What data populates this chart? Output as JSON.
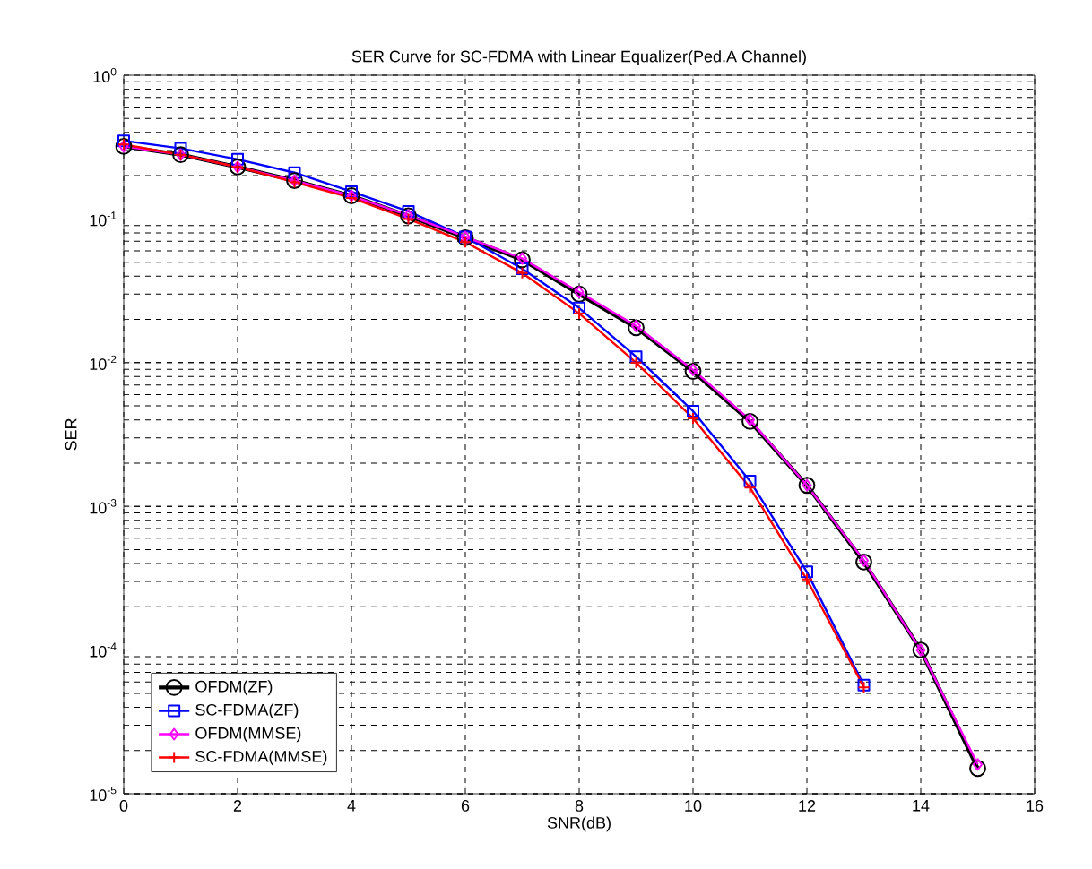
{
  "chart_data": {
    "type": "line",
    "title": "SER Curve for SC-FDMA with Linear Equalizer(Ped.A Channel)",
    "xlabel": "SNR(dB)",
    "ylabel": "SER",
    "x": [
      0,
      1,
      2,
      3,
      4,
      5,
      6,
      7,
      8,
      9,
      10,
      11,
      12,
      13,
      14,
      15
    ],
    "series": [
      {
        "name": "OFDM(ZF)",
        "color": "#000000",
        "marker": "circle",
        "values": [
          0.32,
          0.28,
          0.23,
          0.185,
          0.145,
          0.105,
          0.074,
          0.052,
          0.03,
          0.0175,
          0.0087,
          0.0039,
          0.0014,
          0.00041,
          0.0001,
          1.5e-05
        ]
      },
      {
        "name": "SC-FDMA(ZF)",
        "color": "#0000ff",
        "marker": "square",
        "values": [
          0.35,
          0.31,
          0.26,
          0.21,
          0.155,
          0.113,
          0.075,
          0.045,
          0.024,
          0.011,
          0.0046,
          0.0015,
          0.00035,
          5.7e-05,
          null,
          null
        ]
      },
      {
        "name": "OFDM(MMSE)",
        "color": "#ff00ff",
        "marker": "diamond",
        "values": [
          0.32,
          0.28,
          0.23,
          0.185,
          0.145,
          0.106,
          0.075,
          0.053,
          0.031,
          0.018,
          0.0089,
          0.004,
          0.0014,
          0.00042,
          0.0001,
          1.6e-05
        ]
      },
      {
        "name": "SC-FDMA(MMSE)",
        "color": "#ff0000",
        "marker": "cross",
        "values": [
          0.33,
          0.28,
          0.23,
          0.18,
          0.14,
          0.1,
          0.069,
          0.042,
          0.022,
          0.01,
          0.0041,
          0.00135,
          0.00031,
          5.5e-05,
          null,
          null
        ]
      }
    ],
    "xlim": [
      0,
      16
    ],
    "ylim": [
      1e-05,
      1
    ],
    "xticks": [
      0,
      2,
      4,
      6,
      8,
      10,
      12,
      14,
      16
    ],
    "yticks": [
      {
        "value": 1e-05,
        "label": "10$^{-5}$"
      },
      {
        "value": 0.0001,
        "label": "10$^{-4}$"
      },
      {
        "value": 0.001,
        "label": "10$^{-3}$"
      },
      {
        "value": 0.01,
        "label": "10$^{-2}$"
      },
      {
        "value": 0.1,
        "label": "10$^{-1}$"
      },
      {
        "value": 1,
        "label": "10$^{0}$"
      }
    ],
    "log": "y",
    "grid": true,
    "legend": "bottom left",
    "line_style": "solid"
  }
}
